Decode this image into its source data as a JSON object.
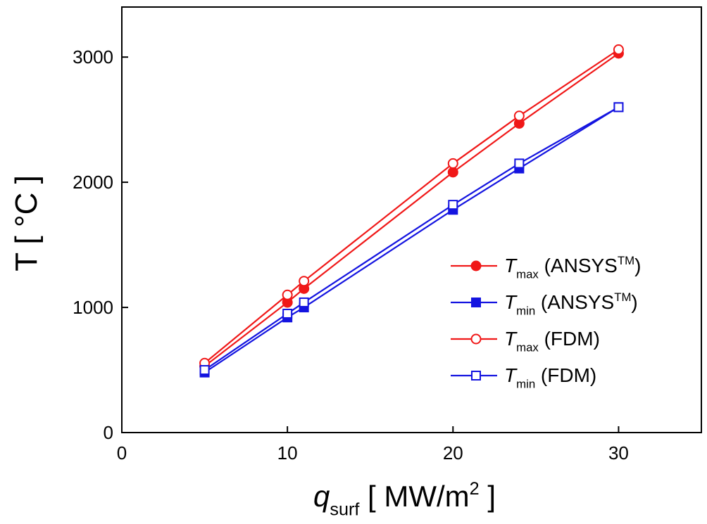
{
  "chart_data": {
    "type": "line",
    "x_label": [
      [
        "q",
        "italic"
      ],
      [
        "surf",
        "sub"
      ],
      [
        " [ MW/m",
        "normal"
      ],
      [
        "2",
        "sup"
      ],
      [
        " ]",
        "normal"
      ]
    ],
    "y_label": [
      [
        "T [ °C ]",
        "normal"
      ]
    ],
    "x": [
      5,
      10,
      11,
      20,
      24,
      30
    ],
    "series": [
      {
        "name": [
          [
            "T",
            "italic"
          ],
          [
            "max",
            "sub"
          ],
          [
            " (ANSYS",
            "normal"
          ],
          [
            "TM",
            "sup"
          ],
          [
            ")",
            "normal"
          ]
        ],
        "color": "#f01818",
        "marker": "circle",
        "filled": true,
        "values": [
          530,
          1040,
          1150,
          2080,
          2470,
          3030
        ]
      },
      {
        "name": [
          [
            "T",
            "italic"
          ],
          [
            "min",
            "sub"
          ],
          [
            " (ANSYS",
            "normal"
          ],
          [
            "TM",
            "sup"
          ],
          [
            ")",
            "normal"
          ]
        ],
        "color": "#1414e0",
        "marker": "square",
        "filled": true,
        "values": [
          480,
          920,
          1000,
          1780,
          2110,
          2600
        ]
      },
      {
        "name": [
          [
            "T",
            "italic"
          ],
          [
            "max",
            "sub"
          ],
          [
            " (FDM)",
            "normal"
          ]
        ],
        "color": "#f01818",
        "marker": "circle",
        "filled": false,
        "values": [
          555,
          1100,
          1210,
          2150,
          2530,
          3060
        ]
      },
      {
        "name": [
          [
            "T",
            "italic"
          ],
          [
            "min",
            "sub"
          ],
          [
            " (FDM)",
            "normal"
          ]
        ],
        "color": "#1414e0",
        "marker": "square",
        "filled": false,
        "values": [
          500,
          950,
          1040,
          1820,
          2150,
          2600
        ]
      }
    ],
    "xlim": [
      0,
      35
    ],
    "xticks": [
      0,
      10,
      20,
      30
    ],
    "ylim": [
      0,
      3400
    ],
    "yticks": [
      0,
      1000,
      2000,
      3000
    ],
    "legend": "lower right"
  }
}
